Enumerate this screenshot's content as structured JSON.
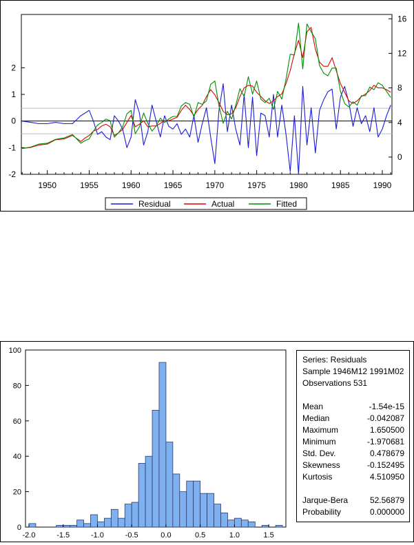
{
  "chart_data": [
    {
      "type": "line",
      "title": "",
      "xlabel": "",
      "ylabel": "",
      "x_ticks": [
        "1950",
        "1955",
        "1960",
        "1965",
        "1970",
        "1975",
        "1980",
        "1985",
        "1990"
      ],
      "x_range": [
        1946.9,
        1991.15
      ],
      "left_axis": {
        "range": [
          -2,
          4
        ],
        "ticks": [
          "-2",
          "-1",
          "0",
          "1",
          "2"
        ]
      },
      "right_axis": {
        "range": [
          -2,
          16.5
        ],
        "ticks": [
          "0",
          "4",
          "8",
          "12",
          "16"
        ]
      },
      "legend": {
        "position": "bottom-center",
        "entries": [
          "Residual",
          "Actual",
          "Fitted"
        ]
      },
      "series": [
        {
          "name": "Residual",
          "axis": "left",
          "color": "#1a1ad9",
          "x": [
            1947.0,
            1948.0,
            1949.0,
            1950.0,
            1951.0,
            1952.0,
            1953.0,
            1954.0,
            1954.5,
            1955.0,
            1955.5,
            1956.0,
            1956.5,
            1957.0,
            1957.5,
            1958.0,
            1958.5,
            1959.0,
            1959.5,
            1960.0,
            1960.5,
            1961.0,
            1961.5,
            1962.0,
            1962.5,
            1963.0,
            1963.5,
            1964.0,
            1964.5,
            1965.0,
            1965.5,
            1966.0,
            1966.5,
            1967.0,
            1967.5,
            1968.0,
            1968.5,
            1969.0,
            1969.5,
            1970.0,
            1970.5,
            1971.0,
            1971.5,
            1972.0,
            1972.5,
            1973.0,
            1973.5,
            1974.0,
            1974.5,
            1975.0,
            1975.5,
            1976.0,
            1976.5,
            1977.0,
            1977.5,
            1978.0,
            1978.5,
            1979.0,
            1979.5,
            1980.0,
            1980.5,
            1981.0,
            1981.5,
            1982.0,
            1982.5,
            1983.0,
            1983.5,
            1984.0,
            1984.5,
            1985.0,
            1985.5,
            1986.0,
            1986.5,
            1987.0,
            1987.5,
            1988.0,
            1988.5,
            1989.0,
            1989.5,
            1990.0,
            1990.5,
            1991.0
          ],
          "y": [
            0.0,
            -0.05,
            -0.1,
            -0.1,
            -0.05,
            -0.1,
            -0.1,
            0.2,
            0.3,
            0.4,
            0.0,
            -0.5,
            -0.4,
            -0.6,
            -0.7,
            0.2,
            0.0,
            -0.3,
            -1.0,
            -0.6,
            0.8,
            0.3,
            -0.9,
            -0.4,
            0.6,
            0.0,
            -0.6,
            0.2,
            -0.2,
            -0.3,
            -0.1,
            -0.5,
            -0.3,
            -0.6,
            0.2,
            -0.8,
            -0.1,
            0.5,
            -0.6,
            -1.6,
            0.4,
            1.4,
            -0.4,
            0.6,
            -0.3,
            -0.9,
            1.0,
            -1.0,
            0.9,
            -1.3,
            0.3,
            0.2,
            -0.6,
            1.0,
            -0.6,
            0.6,
            -0.5,
            -1.9,
            0.2,
            -2.0,
            1.3,
            -0.9,
            0.5,
            -1.2,
            0.4,
            0.8,
            1.1,
            1.2,
            -0.3,
            0.9,
            1.3,
            0.7,
            -0.2,
            0.5,
            -0.1,
            0.2,
            -0.4,
            0.5,
            -0.6,
            -0.3,
            0.2,
            0.6
          ]
        },
        {
          "name": "Actual",
          "axis": "right",
          "color": "#e00000",
          "x": [
            1947.0,
            1948.0,
            1949.0,
            1950.0,
            1951.0,
            1952.0,
            1953.0,
            1954.0,
            1954.5,
            1955.0,
            1955.5,
            1956.0,
            1956.5,
            1957.0,
            1957.5,
            1958.0,
            1958.5,
            1959.0,
            1959.5,
            1960.0,
            1960.5,
            1961.0,
            1961.5,
            1962.0,
            1962.5,
            1963.0,
            1963.5,
            1964.0,
            1964.5,
            1965.0,
            1965.5,
            1966.0,
            1966.5,
            1967.0,
            1967.5,
            1968.0,
            1968.5,
            1969.0,
            1969.5,
            1970.0,
            1970.5,
            1971.0,
            1971.5,
            1972.0,
            1972.5,
            1973.0,
            1973.5,
            1974.0,
            1974.5,
            1975.0,
            1975.5,
            1976.0,
            1976.5,
            1977.0,
            1977.5,
            1978.0,
            1978.5,
            1979.0,
            1979.5,
            1980.0,
            1980.5,
            1981.0,
            1981.5,
            1982.0,
            1982.5,
            1983.0,
            1983.5,
            1984.0,
            1984.5,
            1985.0,
            1985.5,
            1986.0,
            1986.5,
            1987.0,
            1987.5,
            1988.0,
            1988.5,
            1989.0,
            1989.5,
            1990.0,
            1990.5,
            1991.0
          ],
          "y": [
            1.0,
            1.1,
            1.4,
            1.5,
            2.0,
            2.1,
            2.5,
            1.8,
            2.2,
            2.5,
            3.0,
            3.2,
            3.6,
            3.8,
            3.5,
            2.5,
            2.8,
            3.2,
            4.0,
            4.8,
            3.5,
            3.8,
            4.2,
            3.5,
            3.6,
            3.6,
            3.9,
            4.2,
            4.2,
            4.4,
            4.6,
            5.4,
            6.0,
            5.5,
            4.8,
            5.5,
            6.0,
            7.0,
            7.8,
            7.2,
            6.3,
            5.3,
            4.9,
            5.0,
            5.7,
            7.0,
            8.0,
            8.3,
            8.2,
            7.5,
            7.0,
            6.5,
            6.2,
            6.5,
            7.0,
            7.3,
            8.5,
            10.0,
            12.0,
            13.5,
            11.5,
            14.5,
            15.0,
            12.5,
            11.0,
            10.5,
            10.5,
            11.5,
            10.0,
            8.5,
            7.5,
            6.5,
            6.2,
            6.5,
            7.0,
            7.3,
            7.7,
            8.3,
            8.0,
            8.0,
            7.8,
            7.5
          ]
        },
        {
          "name": "Fitted",
          "axis": "right",
          "color": "#008c00",
          "x": [
            1947.0,
            1948.0,
            1949.0,
            1950.0,
            1951.0,
            1952.0,
            1953.0,
            1954.0,
            1954.5,
            1955.0,
            1955.5,
            1956.0,
            1956.5,
            1957.0,
            1957.5,
            1958.0,
            1958.5,
            1959.0,
            1959.5,
            1960.0,
            1960.5,
            1961.0,
            1961.5,
            1962.0,
            1962.5,
            1963.0,
            1963.5,
            1964.0,
            1964.5,
            1965.0,
            1965.5,
            1966.0,
            1966.5,
            1967.0,
            1967.5,
            1968.0,
            1968.5,
            1969.0,
            1969.5,
            1970.0,
            1970.5,
            1971.0,
            1971.5,
            1972.0,
            1972.5,
            1973.0,
            1973.5,
            1974.0,
            1974.5,
            1975.0,
            1975.5,
            1976.0,
            1976.5,
            1977.0,
            1977.5,
            1978.0,
            1978.5,
            1979.0,
            1979.5,
            1980.0,
            1980.5,
            1981.0,
            1981.5,
            1982.0,
            1982.5,
            1983.0,
            1983.5,
            1984.0,
            1984.5,
            1985.0,
            1985.5,
            1986.0,
            1986.5,
            1987.0,
            1987.5,
            1988.0,
            1988.5,
            1989.0,
            1989.5,
            1990.0,
            1990.5,
            1991.0
          ],
          "y": [
            1.0,
            1.15,
            1.5,
            1.6,
            2.05,
            2.2,
            2.6,
            1.6,
            1.9,
            2.1,
            3.0,
            3.7,
            4.0,
            4.4,
            4.2,
            2.3,
            2.8,
            3.5,
            5.0,
            5.4,
            2.7,
            3.5,
            5.1,
            3.9,
            3.0,
            3.6,
            4.5,
            4.0,
            4.4,
            4.7,
            4.7,
            5.9,
            6.3,
            6.1,
            4.6,
            6.3,
            6.1,
            6.5,
            8.4,
            8.8,
            5.9,
            3.9,
            5.3,
            4.4,
            6.0,
            7.9,
            7.0,
            9.3,
            7.3,
            8.8,
            6.7,
            6.3,
            6.8,
            5.5,
            7.6,
            6.7,
            9.0,
            11.9,
            11.8,
            15.5,
            10.2,
            15.4,
            14.5,
            13.7,
            10.6,
            9.7,
            9.4,
            10.3,
            10.3,
            7.6,
            6.2,
            5.8,
            6.4,
            6.0,
            7.1,
            7.1,
            8.1,
            7.8,
            8.6,
            8.3,
            7.6,
            6.9
          ]
        }
      ]
    },
    {
      "type": "bar",
      "title": "",
      "xlabel": "",
      "ylabel": "",
      "x_ticks": [
        "-2.0",
        "-1.5",
        "-1.0",
        "-0.5",
        "0.0",
        "0.5",
        "1.0",
        "1.5"
      ],
      "y_ticks": [
        "0",
        "20",
        "40",
        "60",
        "80",
        "100"
      ],
      "xlim": [
        -2.05,
        1.75
      ],
      "ylim": [
        0,
        100
      ],
      "bin_width": 0.1,
      "bin_starts": [
        -2.0,
        -1.9,
        -1.8,
        -1.7,
        -1.6,
        -1.5,
        -1.4,
        -1.3,
        -1.2,
        -1.1,
        -1.0,
        -0.9,
        -0.8,
        -0.7,
        -0.6,
        -0.5,
        -0.4,
        -0.3,
        -0.2,
        -0.1,
        0.0,
        0.1,
        0.2,
        0.3,
        0.4,
        0.5,
        0.6,
        0.7,
        0.8,
        0.9,
        1.0,
        1.1,
        1.2,
        1.3,
        1.4,
        1.5,
        1.6
      ],
      "values": [
        2,
        0,
        0,
        0,
        1,
        1,
        1,
        4,
        2,
        7,
        3,
        5,
        10,
        5,
        13,
        14,
        36,
        40,
        66,
        93,
        48,
        30,
        20,
        26,
        26,
        19,
        19,
        13,
        8,
        4,
        5,
        4,
        3,
        0,
        1,
        0,
        1
      ],
      "color": "#7fb0f0"
    }
  ],
  "stats": {
    "series_line": "Series: Residuals",
    "sample_line": "Sample 1946M12 1991M02",
    "obs_line": "Observations 531",
    "rows": [
      {
        "label": "Mean",
        "value": "-1.54e-15"
      },
      {
        "label": "Median",
        "value": "-0.042087"
      },
      {
        "label": "Maximum",
        "value": "1.650500"
      },
      {
        "label": "Minimum",
        "value": "-1.970681"
      },
      {
        "label": "Std. Dev.",
        "value": "0.478679"
      },
      {
        "label": "Skewness",
        "value": "-0.152495"
      },
      {
        "label": "Kurtosis",
        "value": "4.510950"
      }
    ],
    "rows2": [
      {
        "label": "Jarque-Bera",
        "value": "52.56879"
      },
      {
        "label": "Probability",
        "value": "0.000000"
      }
    ]
  }
}
